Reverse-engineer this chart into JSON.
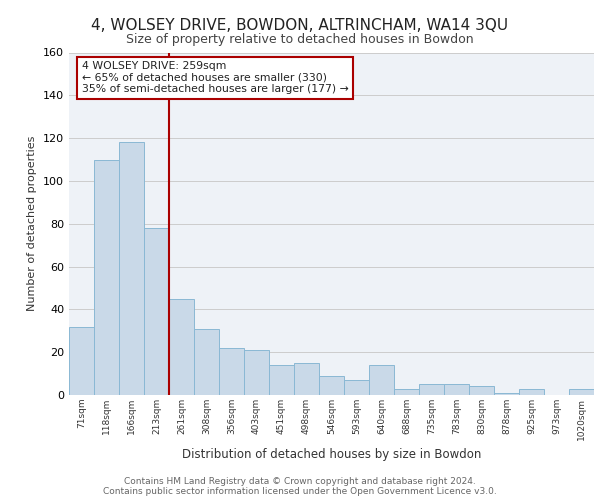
{
  "title": "4, WOLSEY DRIVE, BOWDON, ALTRINCHAM, WA14 3QU",
  "subtitle": "Size of property relative to detached houses in Bowdon",
  "xlabel": "Distribution of detached houses by size in Bowdon",
  "ylabel": "Number of detached properties",
  "categories": [
    "71sqm",
    "118sqm",
    "166sqm",
    "213sqm",
    "261sqm",
    "308sqm",
    "356sqm",
    "403sqm",
    "451sqm",
    "498sqm",
    "546sqm",
    "593sqm",
    "640sqm",
    "688sqm",
    "735sqm",
    "783sqm",
    "830sqm",
    "878sqm",
    "925sqm",
    "973sqm",
    "1020sqm"
  ],
  "values": [
    32,
    110,
    118,
    78,
    45,
    31,
    22,
    21,
    14,
    15,
    9,
    7,
    14,
    3,
    5,
    5,
    4,
    1,
    3,
    0,
    3
  ],
  "bar_color": "#c9d9e8",
  "bar_edge_color": "#8ab8d4",
  "property_label": "4 WOLSEY DRIVE: 259sqm",
  "annotation_line1": "← 65% of detached houses are smaller (330)",
  "annotation_line2": "35% of semi-detached houses are larger (177) →",
  "vline_color": "#aa0000",
  "annotation_box_color": "#ffffff",
  "annotation_box_edge": "#aa0000",
  "grid_color": "#cccccc",
  "bg_color": "#eef2f7",
  "footer1": "Contains HM Land Registry data © Crown copyright and database right 2024.",
  "footer2": "Contains public sector information licensed under the Open Government Licence v3.0.",
  "ylim": [
    0,
    160
  ],
  "title_fontsize": 11,
  "subtitle_fontsize": 9
}
